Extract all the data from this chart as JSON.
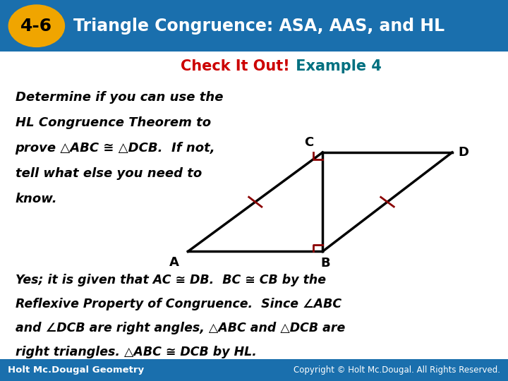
{
  "title_badge": "4-6",
  "title_text": "Triangle Congruence: ASA, AAS, and HL",
  "header_bg": "#1a6fad",
  "badge_bg": "#f0a500",
  "check_it_out": "Check It Out!",
  "example": " Example 4",
  "check_color": "#cc0000",
  "example_color": "#007080",
  "body_lines": [
    "Determine if you can use the",
    "HL Congruence Theorem to",
    "prove △ABC ≅ △DCB.  If not,",
    "tell what else you need to",
    "know."
  ],
  "answer_lines": [
    "Yes; it is given that AC ≅ DB.  BC ≅ CB by the",
    "Reflexive Property of Congruence.  Since ∠ABC",
    "and ∠DCB are right angles, △ABC and △DCB are",
    "right triangles. △ABC ≅ DCB by HL."
  ],
  "footer_left": "Holt Mc.Dougal Geometry",
  "footer_right": "Copyright © Holt Mc.Dougal. All Rights Reserved.",
  "footer_bg": "#1a6fad",
  "bg_color": "#ffffff",
  "tick_color": "#8b0000",
  "right_angle_color": "#8b0000",
  "tri_A": [
    0.37,
    0.34
  ],
  "tri_B": [
    0.635,
    0.34
  ],
  "tri_C": [
    0.635,
    0.6
  ],
  "tri_D": [
    0.89,
    0.6
  ]
}
